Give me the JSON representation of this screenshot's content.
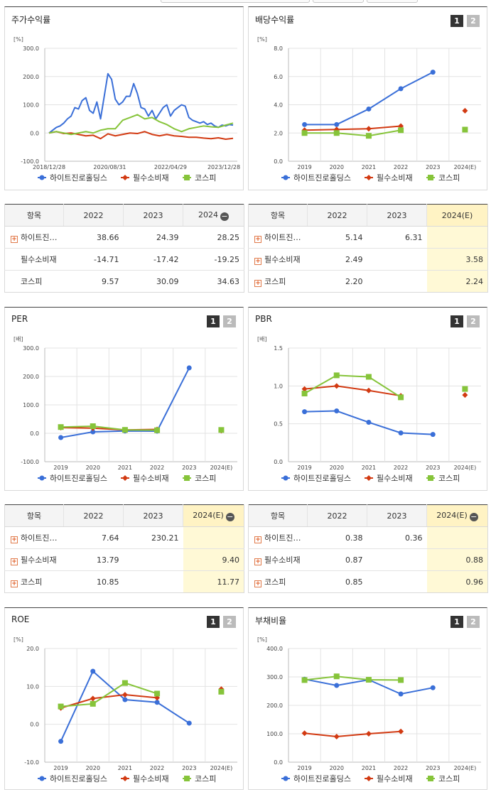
{
  "colors": {
    "series1": "#3a6fd8",
    "series2": "#d23a12",
    "series3": "#86c43a",
    "grid": "#e3e3e3"
  },
  "legend": [
    "하이트진로홀딩스",
    "필수소비재",
    "코스피"
  ],
  "panels": [
    {
      "title": "주가수익률",
      "buttons": []
    },
    {
      "title": "배당수익률",
      "buttons": [
        "1",
        "2"
      ]
    },
    {
      "title": "PER",
      "buttons": [
        "1",
        "2"
      ]
    },
    {
      "title": "PBR",
      "buttons": [
        "1",
        "2"
      ]
    },
    {
      "title": "ROE",
      "buttons": [
        "1",
        "2"
      ]
    },
    {
      "title": "부채비율",
      "buttons": [
        "1",
        "2"
      ]
    }
  ],
  "chart_data": [
    {
      "type": "line",
      "title": "주가수익률",
      "ylabel": "[%]",
      "ylim": [
        -100,
        300
      ],
      "yticks": [
        "300.0",
        "200.0",
        "100.0",
        "0.0",
        "-100.0"
      ],
      "x_tick_labels": [
        "2018/12/28",
        "2020/08/31",
        "2022/04/29",
        "2023/12/28"
      ],
      "x_tick_positions": [
        0,
        0.33,
        0.66,
        1
      ],
      "series": [
        {
          "name": "하이트진로홀딩스",
          "x": [
            0,
            0.02,
            0.04,
            0.06,
            0.08,
            0.1,
            0.12,
            0.14,
            0.16,
            0.18,
            0.2,
            0.22,
            0.24,
            0.26,
            0.28,
            0.3,
            0.32,
            0.34,
            0.36,
            0.38,
            0.4,
            0.42,
            0.44,
            0.46,
            0.48,
            0.5,
            0.52,
            0.54,
            0.56,
            0.58,
            0.6,
            0.62,
            0.64,
            0.66,
            0.68,
            0.7,
            0.72,
            0.74,
            0.76,
            0.78,
            0.8,
            0.82,
            0.84,
            0.86,
            0.88,
            0.9,
            0.92,
            0.94,
            0.96,
            0.98,
            1
          ],
          "values": [
            0,
            10,
            20,
            25,
            35,
            50,
            60,
            90,
            85,
            115,
            125,
            80,
            70,
            110,
            50,
            130,
            210,
            190,
            120,
            100,
            110,
            130,
            130,
            175,
            140,
            90,
            85,
            60,
            80,
            50,
            70,
            90,
            100,
            60,
            80,
            90,
            100,
            95,
            55,
            45,
            40,
            35,
            40,
            30,
            35,
            25,
            20,
            28,
            25,
            30,
            28
          ]
        },
        {
          "name": "필수소비재",
          "x": [
            0,
            0.04,
            0.08,
            0.12,
            0.16,
            0.2,
            0.24,
            0.28,
            0.32,
            0.36,
            0.4,
            0.44,
            0.48,
            0.52,
            0.56,
            0.6,
            0.64,
            0.68,
            0.72,
            0.76,
            0.8,
            0.84,
            0.88,
            0.92,
            0.96,
            1
          ],
          "values": [
            0,
            5,
            -2,
            0,
            -5,
            -10,
            -8,
            -20,
            -3,
            -10,
            -5,
            0,
            -2,
            5,
            -5,
            -10,
            -5,
            -10,
            -12,
            -15,
            -15,
            -18,
            -20,
            -17,
            -22,
            -19
          ]
        },
        {
          "name": "코스피",
          "x": [
            0,
            0.04,
            0.08,
            0.12,
            0.16,
            0.2,
            0.24,
            0.28,
            0.32,
            0.36,
            0.4,
            0.44,
            0.48,
            0.52,
            0.56,
            0.6,
            0.64,
            0.68,
            0.72,
            0.76,
            0.8,
            0.84,
            0.88,
            0.92,
            0.96,
            1
          ],
          "values": [
            0,
            5,
            0,
            -5,
            0,
            5,
            0,
            10,
            15,
            15,
            45,
            55,
            65,
            50,
            55,
            40,
            30,
            15,
            5,
            15,
            20,
            25,
            22,
            20,
            28,
            35
          ]
        }
      ]
    },
    {
      "type": "line",
      "title": "배당수익률",
      "ylabel": "[%]",
      "ylim": [
        0,
        8
      ],
      "yticks": [
        "8.0",
        "6.0",
        "4.0",
        "2.0",
        "0.0"
      ],
      "categories": [
        "2019",
        "2020",
        "2021",
        "2022",
        "2023",
        "2024(E)"
      ],
      "series": [
        {
          "name": "하이트진로홀딩스",
          "values": [
            2.6,
            2.6,
            3.7,
            5.14,
            6.31,
            null
          ]
        },
        {
          "name": "필수소비재",
          "values": [
            2.2,
            2.25,
            2.3,
            2.49,
            null,
            3.58
          ]
        },
        {
          "name": "코스피",
          "values": [
            2.0,
            2.0,
            1.8,
            2.2,
            null,
            2.24
          ]
        }
      ]
    },
    {
      "type": "line",
      "title": "PER",
      "ylabel": "[배]",
      "ylim": [
        -100,
        300
      ],
      "yticks": [
        "300.0",
        "200.0",
        "100.0",
        "0.0",
        "-100.0"
      ],
      "categories": [
        "2019",
        "2020",
        "2021",
        "2022",
        "2023",
        "2024(E)"
      ],
      "series": [
        {
          "name": "하이트진로홀딩스",
          "values": [
            -15,
            5,
            8,
            7.64,
            230.21,
            null
          ]
        },
        {
          "name": "필수소비재",
          "values": [
            20,
            18,
            12,
            13.79,
            null,
            9.4
          ]
        },
        {
          "name": "코스피",
          "values": [
            22,
            25,
            12,
            10.85,
            null,
            11.77
          ]
        }
      ]
    },
    {
      "type": "line",
      "title": "PBR",
      "ylabel": "[배]",
      "ylim": [
        0,
        1.5
      ],
      "yticks": [
        "1.5",
        "1.0",
        "0.5",
        "0.0"
      ],
      "categories": [
        "2019",
        "2020",
        "2021",
        "2022",
        "2023",
        "2024(E)"
      ],
      "series": [
        {
          "name": "하이트진로홀딩스",
          "values": [
            0.66,
            0.67,
            0.52,
            0.38,
            0.36,
            null
          ]
        },
        {
          "name": "필수소비재",
          "values": [
            0.96,
            1.0,
            0.94,
            0.87,
            null,
            0.88
          ]
        },
        {
          "name": "코스피",
          "values": [
            0.9,
            1.14,
            1.12,
            0.85,
            null,
            0.96
          ]
        }
      ]
    },
    {
      "type": "line",
      "title": "ROE",
      "ylabel": "[%]",
      "ylim": [
        -10,
        20
      ],
      "yticks": [
        "20.0",
        "10.0",
        "0.0",
        "-10.0"
      ],
      "categories": [
        "2019",
        "2020",
        "2021",
        "2022",
        "2023",
        "2024(E)"
      ],
      "series": [
        {
          "name": "하이트진로홀딩스",
          "values": [
            -4.5,
            14.0,
            6.5,
            5.8,
            0.3,
            null
          ]
        },
        {
          "name": "필수소비재",
          "values": [
            4.3,
            6.8,
            7.8,
            7.0,
            null,
            9.3
          ]
        },
        {
          "name": "코스피",
          "values": [
            4.7,
            5.4,
            10.9,
            8.1,
            null,
            8.6
          ]
        }
      ]
    },
    {
      "type": "line",
      "title": "부채비율",
      "ylabel": "[%]",
      "ylim": [
        0,
        400
      ],
      "yticks": [
        "400.0",
        "300.0",
        "200.0",
        "100.0",
        "0.0"
      ],
      "categories": [
        "2019",
        "2020",
        "2021",
        "2022",
        "2023",
        "2024(E)"
      ],
      "series": [
        {
          "name": "하이트진로홀딩스",
          "values": [
            292,
            270,
            290,
            240,
            262,
            null
          ]
        },
        {
          "name": "필수소비재",
          "values": [
            102,
            90,
            100,
            108,
            null,
            null
          ]
        },
        {
          "name": "코스피",
          "values": [
            289,
            302,
            290,
            289,
            null,
            null
          ]
        }
      ]
    }
  ],
  "tables": [
    {
      "header": [
        "항목",
        "2022",
        "2023",
        "2024"
      ],
      "header_minus": true,
      "rows": [
        {
          "label": "하이트진…",
          "plus": true,
          "values": [
            "38.66",
            "24.39",
            "28.25"
          ]
        },
        {
          "label": "필수소비재",
          "plus": false,
          "values": [
            "-14.71",
            "-17.42",
            "-19.25"
          ]
        },
        {
          "label": "코스피",
          "plus": false,
          "values": [
            "9.57",
            "30.09",
            "34.63"
          ]
        }
      ],
      "highlight_last": false
    },
    {
      "header": [
        "항목",
        "2022",
        "2023",
        "2024(E)"
      ],
      "header_minus": false,
      "rows": [
        {
          "label": "하이트진…",
          "plus": true,
          "values": [
            "5.14",
            "6.31",
            ""
          ]
        },
        {
          "label": "필수소비재",
          "plus": true,
          "values": [
            "2.49",
            "",
            "3.58"
          ]
        },
        {
          "label": "코스피",
          "plus": true,
          "values": [
            "2.20",
            "",
            "2.24"
          ]
        }
      ],
      "highlight_last": true
    },
    {
      "header": [
        "항목",
        "2022",
        "2023",
        "2024(E)"
      ],
      "header_minus": true,
      "rows": [
        {
          "label": "하이트진…",
          "plus": true,
          "values": [
            "7.64",
            "230.21",
            ""
          ]
        },
        {
          "label": "필수소비재",
          "plus": true,
          "values": [
            "13.79",
            "",
            "9.40"
          ]
        },
        {
          "label": "코스피",
          "plus": true,
          "values": [
            "10.85",
            "",
            "11.77"
          ]
        }
      ],
      "highlight_last": true
    },
    {
      "header": [
        "항목",
        "2022",
        "2023",
        "2024(E)"
      ],
      "header_minus": true,
      "rows": [
        {
          "label": "하이트진…",
          "plus": true,
          "values": [
            "0.38",
            "0.36",
            ""
          ]
        },
        {
          "label": "필수소비재",
          "plus": true,
          "values": [
            "0.87",
            "",
            "0.88"
          ]
        },
        {
          "label": "코스피",
          "plus": true,
          "values": [
            "0.85",
            "",
            "0.96"
          ]
        }
      ],
      "highlight_last": true
    }
  ]
}
